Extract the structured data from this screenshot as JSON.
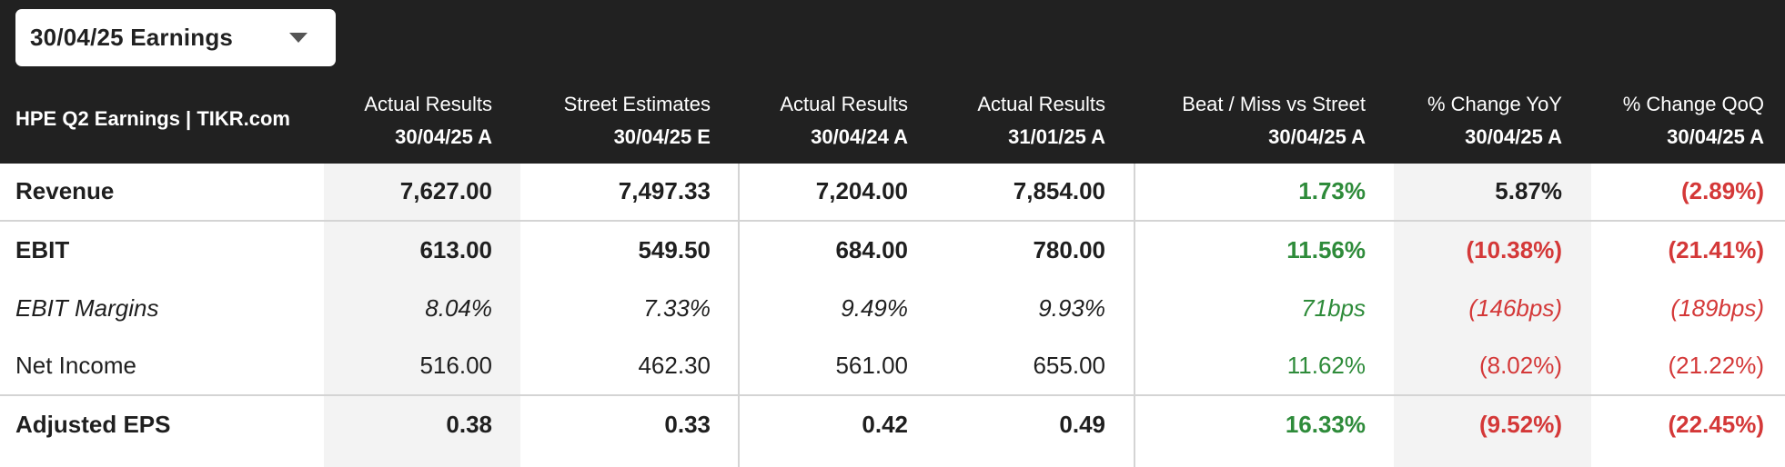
{
  "period_selector": {
    "label": "30/04/25 Earnings",
    "icon": "caret-down-icon"
  },
  "table_title": "HPE Q2 Earnings | TIKR.com",
  "columns": [
    {
      "label": "Actual Results",
      "date": "30/04/25 A"
    },
    {
      "label": "Street Estimates",
      "date": "30/04/25 E"
    },
    {
      "label": "Actual Results",
      "date": "30/04/24 A"
    },
    {
      "label": "Actual Results",
      "date": "31/01/25 A"
    },
    {
      "label": "Beat / Miss vs Street",
      "date": "30/04/25 A"
    },
    {
      "label": "% Change YoY",
      "date": "30/04/25 A"
    },
    {
      "label": "% Change QoQ",
      "date": "30/04/25 A"
    }
  ],
  "rows": [
    {
      "label": "Revenue",
      "style": "bold",
      "values": [
        "7,627.00",
        "7,497.33",
        "7,204.00",
        "7,854.00",
        "1.73%",
        "5.87%",
        "(2.89%)"
      ]
    },
    {
      "label": "EBIT",
      "style": "bold",
      "values": [
        "613.00",
        "549.50",
        "684.00",
        "780.00",
        "11.56%",
        "(10.38%)",
        "(21.41%)"
      ]
    },
    {
      "label": "EBIT Margins",
      "style": "italic",
      "values": [
        "8.04%",
        "7.33%",
        "9.49%",
        "9.93%",
        "71bps",
        "(146bps)",
        "(189bps)"
      ]
    },
    {
      "label": "Net Income",
      "style": "normal",
      "values": [
        "516.00",
        "462.30",
        "561.00",
        "655.00",
        "11.62%",
        "(8.02%)",
        "(21.22%)"
      ]
    },
    {
      "label": "Adjusted EPS",
      "style": "bold",
      "values": [
        "0.38",
        "0.33",
        "0.42",
        "0.49",
        "16.33%",
        "(9.52%)",
        "(22.45%)"
      ]
    }
  ],
  "colors": {
    "header_bg": "#212121",
    "positive": "#2e8b3a",
    "negative": "#d43838",
    "shaded_column": "#f3f3f3",
    "divider": "#d4d4d4"
  }
}
